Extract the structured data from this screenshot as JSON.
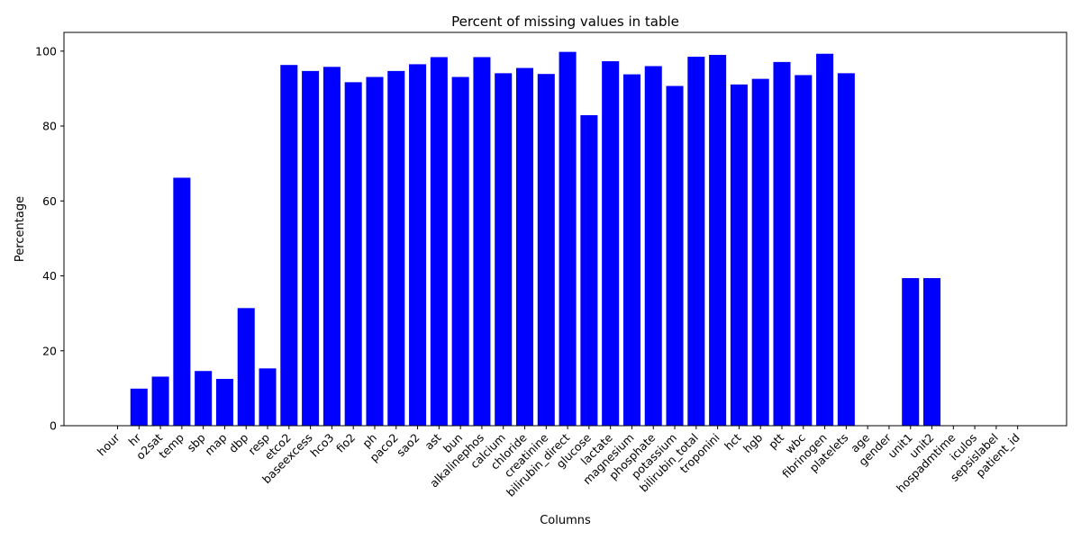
{
  "chart_data": {
    "type": "bar",
    "title": "Percent of missing values in table",
    "xlabel": "Columns",
    "ylabel": "Percentage",
    "ylim": [
      0,
      105
    ],
    "yticks": [
      "0",
      "20",
      "40",
      "60",
      "80",
      "100"
    ],
    "grid": false,
    "bar_color": "#0000ff",
    "categories": [
      "hour",
      "hr",
      "o2sat",
      "temp",
      "sbp",
      "map",
      "dbp",
      "resp",
      "etco2",
      "baseexcess",
      "hco3",
      "fio2",
      "ph",
      "paco2",
      "sao2",
      "ast",
      "bun",
      "alkalinephos",
      "calcium",
      "chloride",
      "creatinine",
      "bilirubin_direct",
      "glucose",
      "lactate",
      "magnesium",
      "phosphate",
      "potassium",
      "bilirubin_total",
      "troponini",
      "hct",
      "hgb",
      "ptt",
      "wbc",
      "fibrinogen",
      "platelets",
      "age",
      "gender",
      "unit1",
      "unit2",
      "hospadmtime",
      "iculos",
      "sepsislabel",
      "patient_id"
    ],
    "values": [
      0,
      9.9,
      13.1,
      66.2,
      14.6,
      12.5,
      31.4,
      15.3,
      96.3,
      94.7,
      95.8,
      91.7,
      93.1,
      94.7,
      96.5,
      98.4,
      93.1,
      98.4,
      94.1,
      95.5,
      93.9,
      99.8,
      82.9,
      97.3,
      93.8,
      96.0,
      90.7,
      98.5,
      99.0,
      91.1,
      92.6,
      97.1,
      93.6,
      99.3,
      94.1,
      0,
      0,
      39.4,
      39.4,
      0,
      0,
      0,
      0
    ]
  }
}
